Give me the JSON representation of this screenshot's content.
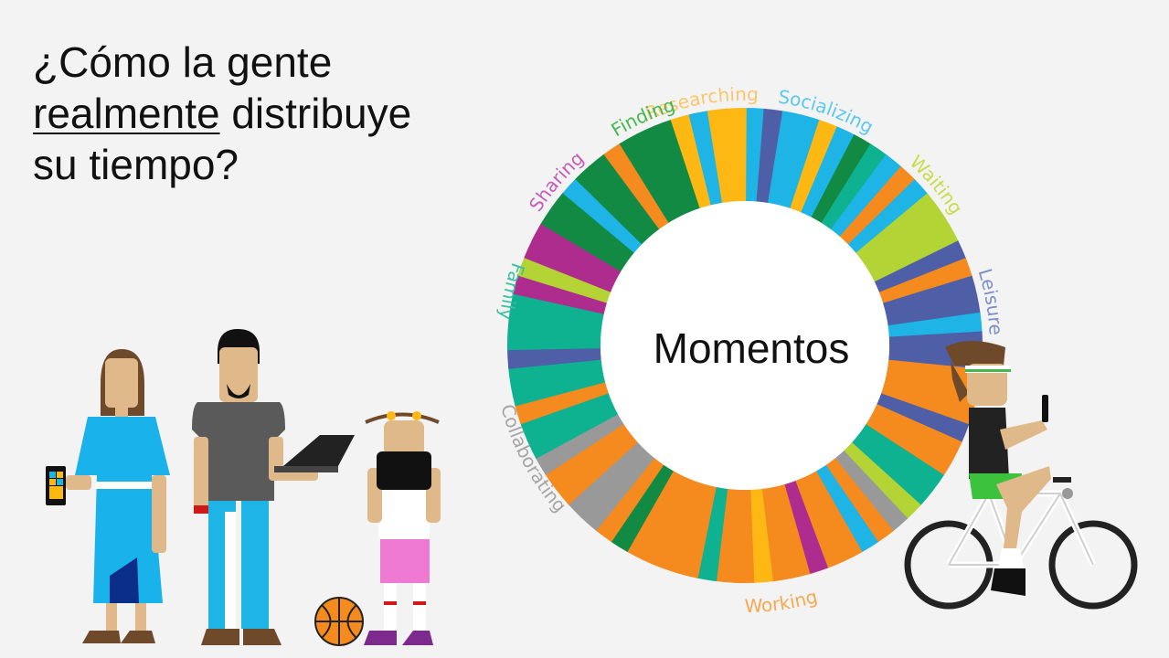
{
  "title": {
    "prefix": "¿Cómo la gente",
    "underlined": "realmente",
    "mid": "distribuye",
    "last": "su tiempo?"
  },
  "diagram": {
    "center_label": "Momentos",
    "categories": [
      {
        "id": "researching",
        "label": "Researching",
        "color": "#f9c66b"
      },
      {
        "id": "socializing",
        "label": "Socializing",
        "color": "#5bc8ee"
      },
      {
        "id": "waiting",
        "label": "Waiting",
        "color": "#c8dc4a"
      },
      {
        "id": "leisure",
        "label": "Leisure",
        "color": "#7b8ec9"
      },
      {
        "id": "working",
        "label": "Working",
        "color": "#f7a84e"
      },
      {
        "id": "collaborating",
        "label": "Collaborating",
        "color": "#a5a5a5"
      },
      {
        "id": "family",
        "label": "Family",
        "color": "#3ec0a3"
      },
      {
        "id": "sharing",
        "label": "Sharing",
        "color": "#c65ab8"
      },
      {
        "id": "finding",
        "label": "Finding",
        "color": "#44b84e"
      }
    ]
  },
  "colors": {
    "orange": "#f58a1f",
    "green": "#128a43",
    "yellow": "#fdb813",
    "cyan": "#1fb4e6",
    "blue": "#4e5fa8",
    "teal": "#0fb290",
    "lime": "#b4d334",
    "magenta": "#ad2c8e",
    "gray": "#999999"
  }
}
